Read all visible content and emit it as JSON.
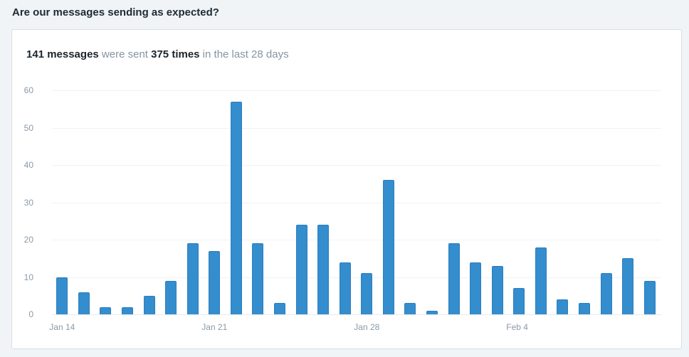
{
  "heading": "Are our messages sending as expected?",
  "summary": {
    "count_bold": "141 messages",
    "mid": " were sent ",
    "times_bold": "375 times",
    "tail": " in the last 28 days"
  },
  "colors": {
    "bar": "#348dcd",
    "bar_border": "#2b7fc0",
    "page_bg": "#f0f4f7",
    "card_bg": "#ffffff"
  },
  "chart_data": {
    "type": "bar",
    "title": "",
    "xlabel": "",
    "ylabel": "",
    "ylim": [
      0,
      60
    ],
    "yticks": [
      0,
      10,
      20,
      30,
      40,
      50,
      60
    ],
    "grid": true,
    "legend": "none",
    "x_tick_labels": [
      {
        "label": "Jan 14",
        "index": 0
      },
      {
        "label": "Jan 21",
        "index": 7
      },
      {
        "label": "Jan 28",
        "index": 14
      },
      {
        "label": "Feb 4",
        "index": 21
      }
    ],
    "categories": [
      "Jan 14",
      "Jan 15",
      "Jan 16",
      "Jan 17",
      "Jan 18",
      "Jan 19",
      "Jan 20",
      "Jan 21",
      "Jan 22",
      "Jan 23",
      "Jan 24",
      "Jan 25",
      "Jan 26",
      "Jan 27",
      "Jan 28",
      "Jan 29",
      "Jan 30",
      "Jan 31",
      "Feb 1",
      "Feb 2",
      "Feb 3",
      "Feb 4",
      "Feb 5",
      "Feb 6",
      "Feb 7",
      "Feb 8",
      "Feb 9",
      "Feb 10"
    ],
    "values": [
      10,
      6,
      2,
      2,
      5,
      9,
      19,
      17,
      57,
      19,
      3,
      24,
      24,
      14,
      11,
      36,
      3,
      1,
      19,
      14,
      13,
      7,
      18,
      4,
      3,
      11,
      15,
      9
    ]
  }
}
